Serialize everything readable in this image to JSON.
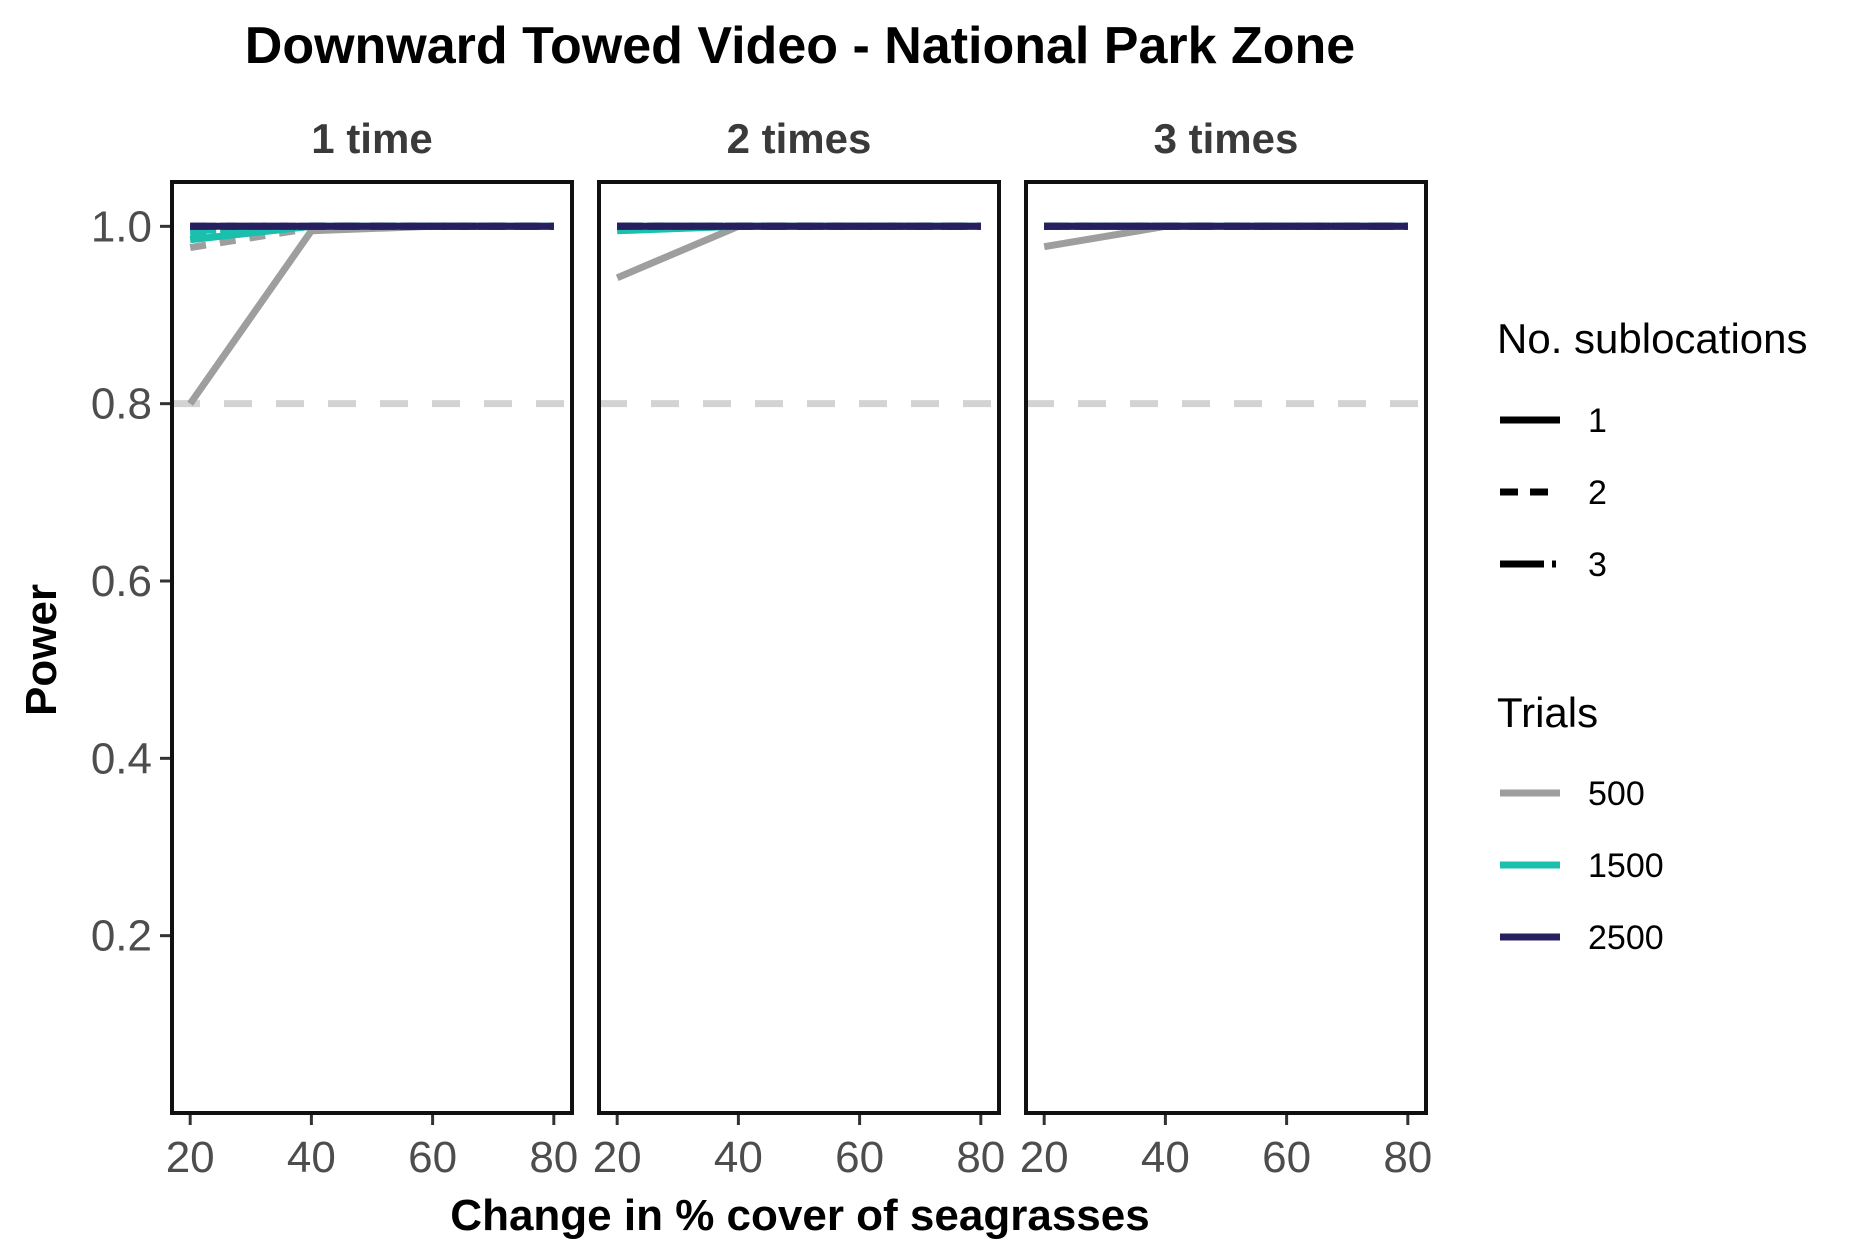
{
  "chart_data": {
    "type": "line",
    "title": "Downward Towed Video - National Park Zone",
    "xlabel": "Change in % cover of seagrasses",
    "ylabel": "Power",
    "x_ticks": [
      "20",
      "40",
      "60",
      "80"
    ],
    "y_ticks": [
      "0.2",
      "0.4",
      "0.6",
      "0.8",
      "1.0"
    ],
    "xlim": [
      17,
      83
    ],
    "ylim": [
      0,
      1.05
    ],
    "reference_line": {
      "y": 0.8,
      "style": "dashed",
      "color": "#d3d3d3"
    },
    "grid": false,
    "legend_position": "right",
    "legends": [
      {
        "title": "No. sublocations",
        "entries": [
          {
            "label": "1",
            "linetype": "solid"
          },
          {
            "label": "2",
            "linetype": "dashed"
          },
          {
            "label": "3",
            "linetype": "longdash"
          }
        ]
      },
      {
        "title": "Trials",
        "entries": [
          {
            "label": "500",
            "color": "#9e9e9e"
          },
          {
            "label": "1500",
            "color": "#1bbfae"
          },
          {
            "label": "2500",
            "color": "#26205e"
          }
        ]
      }
    ],
    "panels": [
      {
        "label": "1 time",
        "series": [
          {
            "trials": "500",
            "sublocations": "1",
            "x": [
              20,
              40,
              60,
              80
            ],
            "y": [
              0.8,
              0.995,
              1.0,
              1.0
            ]
          },
          {
            "trials": "500",
            "sublocations": "2",
            "x": [
              20,
              40,
              60,
              80
            ],
            "y": [
              0.976,
              0.998,
              1.0,
              1.0
            ]
          },
          {
            "trials": "500",
            "sublocations": "3",
            "x": [
              20,
              40,
              60,
              80
            ],
            "y": [
              0.985,
              1.0,
              1.0,
              1.0
            ]
          },
          {
            "trials": "1500",
            "sublocations": "1",
            "x": [
              20,
              40,
              60,
              80
            ],
            "y": [
              0.985,
              1.0,
              1.0,
              1.0
            ]
          },
          {
            "trials": "1500",
            "sublocations": "2",
            "x": [
              20,
              40,
              60,
              80
            ],
            "y": [
              0.992,
              1.0,
              1.0,
              1.0
            ]
          },
          {
            "trials": "1500",
            "sublocations": "3",
            "x": [
              20,
              40,
              60,
              80
            ],
            "y": [
              0.995,
              1.0,
              1.0,
              1.0
            ]
          },
          {
            "trials": "2500",
            "sublocations": "1",
            "x": [
              20,
              40,
              60,
              80
            ],
            "y": [
              1.0,
              1.0,
              1.0,
              1.0
            ]
          },
          {
            "trials": "2500",
            "sublocations": "2",
            "x": [
              20,
              40,
              60,
              80
            ],
            "y": [
              1.0,
              1.0,
              1.0,
              1.0
            ]
          },
          {
            "trials": "2500",
            "sublocations": "3",
            "x": [
              20,
              40,
              60,
              80
            ],
            "y": [
              1.0,
              1.0,
              1.0,
              1.0
            ]
          }
        ]
      },
      {
        "label": "2 times",
        "series": [
          {
            "trials": "500",
            "sublocations": "1",
            "x": [
              20,
              40,
              60,
              80
            ],
            "y": [
              0.942,
              1.0,
              1.0,
              1.0
            ]
          },
          {
            "trials": "500",
            "sublocations": "2",
            "x": [
              20,
              40,
              60,
              80
            ],
            "y": [
              0.996,
              1.0,
              1.0,
              1.0
            ]
          },
          {
            "trials": "500",
            "sublocations": "3",
            "x": [
              20,
              40,
              60,
              80
            ],
            "y": [
              1.0,
              1.0,
              1.0,
              1.0
            ]
          },
          {
            "trials": "1500",
            "sublocations": "1",
            "x": [
              20,
              40,
              60,
              80
            ],
            "y": [
              0.995,
              1.0,
              1.0,
              1.0
            ]
          },
          {
            "trials": "1500",
            "sublocations": "2",
            "x": [
              20,
              40,
              60,
              80
            ],
            "y": [
              1.0,
              1.0,
              1.0,
              1.0
            ]
          },
          {
            "trials": "1500",
            "sublocations": "3",
            "x": [
              20,
              40,
              60,
              80
            ],
            "y": [
              1.0,
              1.0,
              1.0,
              1.0
            ]
          },
          {
            "trials": "2500",
            "sublocations": "1",
            "x": [
              20,
              40,
              60,
              80
            ],
            "y": [
              1.0,
              1.0,
              1.0,
              1.0
            ]
          },
          {
            "trials": "2500",
            "sublocations": "2",
            "x": [
              20,
              40,
              60,
              80
            ],
            "y": [
              1.0,
              1.0,
              1.0,
              1.0
            ]
          },
          {
            "trials": "2500",
            "sublocations": "3",
            "x": [
              20,
              40,
              60,
              80
            ],
            "y": [
              1.0,
              1.0,
              1.0,
              1.0
            ]
          }
        ]
      },
      {
        "label": "3 times",
        "series": [
          {
            "trials": "500",
            "sublocations": "1",
            "x": [
              20,
              40,
              60,
              80
            ],
            "y": [
              0.977,
              1.0,
              1.0,
              1.0
            ]
          },
          {
            "trials": "500",
            "sublocations": "2",
            "x": [
              20,
              40,
              60,
              80
            ],
            "y": [
              1.0,
              1.0,
              1.0,
              1.0
            ]
          },
          {
            "trials": "500",
            "sublocations": "3",
            "x": [
              20,
              40,
              60,
              80
            ],
            "y": [
              1.0,
              1.0,
              1.0,
              1.0
            ]
          },
          {
            "trials": "1500",
            "sublocations": "1",
            "x": [
              20,
              40,
              60,
              80
            ],
            "y": [
              1.0,
              1.0,
              1.0,
              1.0
            ]
          },
          {
            "trials": "1500",
            "sublocations": "2",
            "x": [
              20,
              40,
              60,
              80
            ],
            "y": [
              1.0,
              1.0,
              1.0,
              1.0
            ]
          },
          {
            "trials": "1500",
            "sublocations": "3",
            "x": [
              20,
              40,
              60,
              80
            ],
            "y": [
              1.0,
              1.0,
              1.0,
              1.0
            ]
          },
          {
            "trials": "2500",
            "sublocations": "1",
            "x": [
              20,
              40,
              60,
              80
            ],
            "y": [
              1.0,
              1.0,
              1.0,
              1.0
            ]
          },
          {
            "trials": "2500",
            "sublocations": "2",
            "x": [
              20,
              40,
              60,
              80
            ],
            "y": [
              1.0,
              1.0,
              1.0,
              1.0
            ]
          },
          {
            "trials": "2500",
            "sublocations": "3",
            "x": [
              20,
              40,
              60,
              80
            ],
            "y": [
              1.0,
              1.0,
              1.0,
              1.0
            ]
          }
        ]
      }
    ]
  }
}
